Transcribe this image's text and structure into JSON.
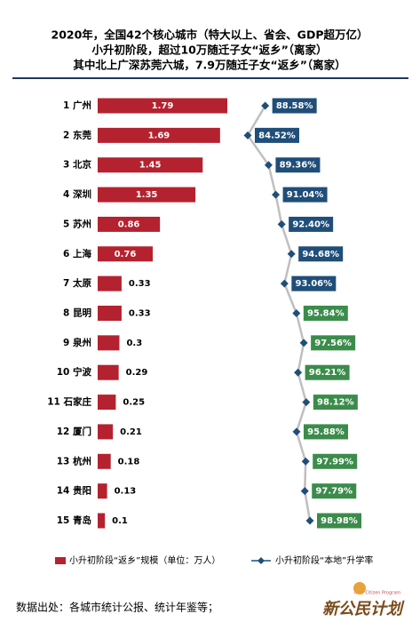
{
  "chart_data": {
    "type": "bar-line",
    "title": [
      "2020年，全国42个核心城市（特大以上、省会、GDP超万亿）",
      "小升初阶段，超过10万随迁子女“返乡”（离家）",
      "其中北上广深苏莞六城，7.9万随迁子女“返乡”（离家）"
    ],
    "categories": [
      "1 广州",
      "2 东莞",
      "3 北京",
      "4 深圳",
      "5 苏州",
      "6 上海",
      "7 太原",
      "8 昆明",
      "9 泉州",
      "10 宁波",
      "11 石家庄",
      "12 厦门",
      "13 杭州",
      "14 贵阳",
      "15 青岛"
    ],
    "series": [
      {
        "name": "小升初阶段“返乡”规模（单位：万人）",
        "type": "bar",
        "color": "#b5222f",
        "values": [
          1.79,
          1.69,
          1.45,
          1.35,
          0.86,
          0.76,
          0.33,
          0.33,
          0.3,
          0.29,
          0.25,
          0.21,
          0.18,
          0.13,
          0.1
        ]
      },
      {
        "name": "小升初阶段“本地”升学率",
        "type": "line",
        "color": "#1f4e79",
        "line_color": "#bfbfbf",
        "label_colors": [
          "#1f4e79",
          "#1f4e79",
          "#1f4e79",
          "#1f4e79",
          "#1f4e79",
          "#1f4e79",
          "#1f4e79",
          "#3b8c4b",
          "#3b8c4b",
          "#3b8c4b",
          "#3b8c4b",
          "#3b8c4b",
          "#3b8c4b",
          "#3b8c4b",
          "#3b8c4b"
        ],
        "values": [
          88.58,
          84.52,
          89.36,
          91.04,
          92.4,
          94.68,
          93.06,
          95.84,
          97.56,
          96.21,
          98.12,
          95.88,
          97.99,
          97.79,
          98.98
        ],
        "value_labels": [
          "88.58%",
          "84.52%",
          "89.36%",
          "91.04%",
          "92.40%",
          "94.68%",
          "93.06%",
          "95.84%",
          "97.56%",
          "96.21%",
          "98.12%",
          "95.88%",
          "97.99%",
          "97.79%",
          "98.98%"
        ]
      }
    ],
    "source": "数据出处：各城市统计公报、统计年鉴等；",
    "logo": {
      "text": "新公民计划",
      "subtitle": "New Citizen Program"
    }
  }
}
